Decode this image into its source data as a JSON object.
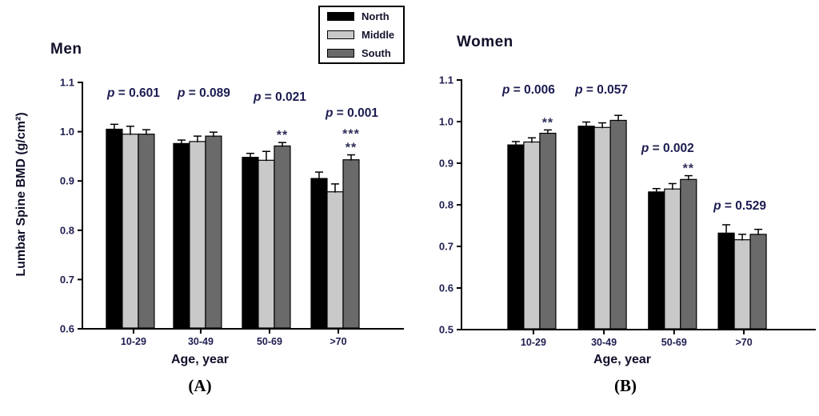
{
  "palette": {
    "axis_color": "#000000",
    "tick_text_color": "#1e1e50",
    "annotation_text_color": "#1c1c52",
    "star_color": "#2d2d58",
    "background": "#ffffff"
  },
  "legend": {
    "items": [
      {
        "label": "North",
        "color": "#000000"
      },
      {
        "label": "Middle",
        "color": "#c9c9c9"
      },
      {
        "label": "South",
        "color": "#6a6a6a"
      }
    ]
  },
  "chart_data": [
    {
      "type": "bar",
      "panel_label": "(A)",
      "title": "Men",
      "xlabel": "Age, year",
      "ylabel": "Lumbar Spine BMD (g/cm²)",
      "ylim": [
        0.6,
        1.1
      ],
      "yticks": [
        0.6,
        0.7,
        0.8,
        0.9,
        1.0,
        1.1
      ],
      "categories": [
        "10-29",
        "30-49",
        "50-69",
        ">70"
      ],
      "legend_position": "top-center",
      "grid": false,
      "series": [
        {
          "name": "North",
          "color": "#000000",
          "values": [
            1.005,
            0.976,
            0.948,
            0.905
          ],
          "errors": [
            0.01,
            0.007,
            0.008,
            0.013
          ]
        },
        {
          "name": "Middle",
          "color": "#c9c9c9",
          "values": [
            0.995,
            0.98,
            0.942,
            0.878
          ],
          "errors": [
            0.016,
            0.011,
            0.018,
            0.016
          ]
        },
        {
          "name": "South",
          "color": "#6a6a6a",
          "values": [
            0.995,
            0.991,
            0.971,
            0.943
          ],
          "errors": [
            0.009,
            0.008,
            0.007,
            0.01
          ]
        }
      ],
      "annotations": [
        {
          "text": "p = 0.601",
          "y": 1.079
        },
        {
          "text": "p = 0.089",
          "y": 1.079
        },
        {
          "text": "p = 0.021",
          "y": 1.071
        },
        {
          "text": "p = 0.001",
          "y": 1.038
        }
      ],
      "stars": [
        null,
        null,
        {
          "series": "South",
          "rows": [
            "**"
          ]
        },
        {
          "series": "South",
          "rows": [
            "***",
            "**"
          ]
        }
      ]
    },
    {
      "type": "bar",
      "panel_label": "(B)",
      "title": "Women",
      "xlabel": "Age, year",
      "ylabel": "",
      "ylim": [
        0.5,
        1.1
      ],
      "yticks": [
        0.5,
        0.6,
        0.7,
        0.8,
        0.9,
        1.0,
        1.1
      ],
      "categories": [
        "10-29",
        "30-49",
        "50-69",
        ">70"
      ],
      "grid": false,
      "series": [
        {
          "name": "North",
          "color": "#000000",
          "values": [
            0.944,
            0.989,
            0.831,
            0.732
          ],
          "errors": [
            0.008,
            0.01,
            0.008,
            0.02
          ]
        },
        {
          "name": "Middle",
          "color": "#c9c9c9",
          "values": [
            0.951,
            0.986,
            0.838,
            0.716
          ],
          "errors": [
            0.01,
            0.011,
            0.013,
            0.013
          ]
        },
        {
          "name": "South",
          "color": "#6a6a6a",
          "values": [
            0.972,
            1.003,
            0.861,
            0.729
          ],
          "errors": [
            0.008,
            0.012,
            0.009,
            0.012
          ]
        }
      ],
      "annotations": [
        {
          "text": "p = 0.006",
          "y": 1.077
        },
        {
          "text": "p = 0.057",
          "y": 1.077
        },
        {
          "text": "p = 0.002",
          "y": 0.937
        },
        {
          "text": "p = 0.529",
          "y": 0.798
        }
      ],
      "stars": [
        {
          "series": "South",
          "rows": [
            "**"
          ]
        },
        null,
        {
          "series": "South",
          "rows": [
            "**"
          ]
        },
        null
      ]
    }
  ]
}
